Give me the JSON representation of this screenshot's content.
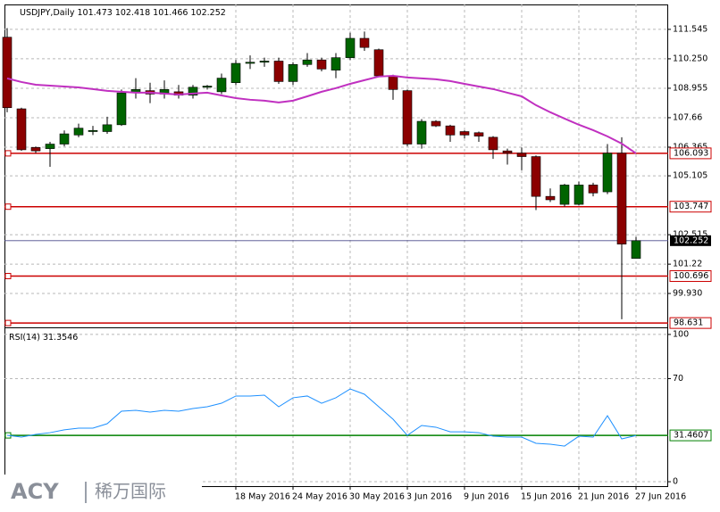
{
  "chart_data": [
    {
      "type": "candlestick",
      "title": "USDJPY,Daily",
      "categories": [
        null,
        null,
        null,
        null,
        null,
        null,
        null,
        null,
        null,
        null,
        null,
        null,
        null,
        null,
        null,
        null,
        "18 May 2016",
        null,
        null,
        null,
        "24 May 2016",
        null,
        null,
        null,
        "30 May 2016",
        null,
        null,
        null,
        "3 Jun 2016",
        null,
        null,
        null,
        "9 Jun 2016",
        null,
        null,
        null,
        "15 Jun 2016",
        null,
        null,
        null,
        "21 Jun 2016",
        null,
        null,
        null,
        "27 Jun 2016"
      ],
      "open": [
        111.2,
        108.05,
        106.35,
        106.3,
        106.5,
        106.9,
        107.05,
        107.05,
        107.35,
        108.75,
        108.85,
        108.7,
        108.8,
        108.65,
        109.0,
        108.8,
        109.2,
        110.05,
        110.1,
        110.15,
        109.25,
        110.0,
        110.2,
        109.75,
        110.3,
        111.15,
        110.65,
        109.5,
        108.85,
        106.5,
        107.5,
        107.3,
        107.05,
        107.0,
        106.8,
        106.2,
        106.1,
        105.95,
        104.2,
        103.85,
        103.85,
        104.7,
        104.4,
        106.1,
        101.473
      ],
      "high": [
        111.6,
        108.1,
        106.4,
        106.6,
        107.1,
        107.4,
        107.3,
        107.7,
        108.9,
        109.4,
        109.2,
        109.3,
        109.1,
        109.1,
        109.1,
        109.6,
        110.2,
        110.4,
        110.3,
        110.3,
        110.1,
        110.5,
        110.3,
        110.5,
        111.4,
        111.45,
        110.7,
        109.55,
        108.9,
        107.6,
        107.55,
        107.35,
        107.1,
        107.05,
        106.85,
        106.3,
        106.35,
        106.0,
        104.55,
        104.75,
        104.85,
        104.8,
        106.5,
        106.8,
        102.418
      ],
      "low": [
        107.9,
        106.2,
        106.1,
        105.5,
        106.4,
        106.8,
        106.9,
        106.95,
        107.3,
        108.5,
        108.3,
        108.5,
        108.5,
        108.5,
        108.9,
        108.7,
        109.1,
        109.8,
        109.9,
        109.15,
        109.1,
        109.9,
        109.7,
        109.4,
        110.2,
        110.6,
        109.45,
        108.45,
        106.4,
        106.3,
        107.25,
        106.6,
        106.75,
        106.6,
        105.85,
        105.6,
        105.35,
        103.6,
        103.95,
        103.75,
        103.8,
        104.2,
        104.3,
        98.8,
        101.466
      ],
      "close": [
        108.1,
        106.25,
        106.2,
        106.5,
        106.95,
        107.2,
        107.1,
        107.35,
        108.75,
        108.9,
        108.7,
        108.9,
        108.65,
        109.0,
        109.05,
        109.4,
        110.05,
        110.1,
        110.15,
        109.25,
        110.0,
        110.2,
        109.8,
        110.3,
        111.15,
        110.75,
        109.5,
        108.9,
        106.5,
        107.5,
        107.3,
        106.9,
        106.9,
        106.85,
        106.25,
        106.1,
        105.95,
        104.2,
        104.05,
        104.7,
        104.7,
        104.35,
        106.1,
        102.1,
        102.252
      ],
      "up_color": "#006400",
      "down_color": "#8b0000",
      "overlay_values": [
        109.39,
        109.23,
        109.11,
        109.07,
        109.03,
        108.99,
        108.92,
        108.84,
        108.8,
        108.76,
        108.76,
        108.72,
        108.68,
        108.72,
        108.76,
        108.64,
        108.52,
        108.45,
        108.41,
        108.33,
        108.41,
        108.6,
        108.8,
        108.96,
        109.15,
        109.31,
        109.47,
        109.5,
        109.43,
        109.39,
        109.35,
        109.27,
        109.15,
        109.03,
        108.92,
        108.76,
        108.6,
        108.21,
        107.9,
        107.62,
        107.35,
        107.11,
        106.84,
        106.52,
        106.093
      ],
      "overlay_color": "#c030c0",
      "levels": [
        106.093,
        103.747,
        100.696,
        98.631
      ],
      "level_color": "#cc0000",
      "current_color": "#4a4a8a",
      "ylim": [
        98.44,
        112.64
      ],
      "yticks": [
        111.545,
        {
          "value": 110.25,
          "label": "110.250"
        },
        108.955,
        107.66,
        106.365,
        105.105,
        102.515,
        101.22,
        {
          "value": 99.93,
          "label": "99.930"
        }
      ],
      "grid": true
    },
    {
      "type": "line",
      "title": "RSI(14)",
      "values": [
        31.5,
        30.3,
        32.1,
        33.3,
        35.2,
        36.4,
        36.4,
        39.4,
        47.9,
        48.5,
        47.3,
        48.5,
        47.9,
        49.7,
        50.9,
        53.3,
        58.2,
        58.2,
        58.8,
        50.9,
        57.0,
        58.2,
        53.3,
        57.0,
        63.0,
        59.4,
        50.9,
        42.4,
        31.5,
        38.2,
        37.0,
        33.9,
        33.9,
        33.3,
        30.9,
        30.3,
        30.3,
        26.1,
        25.5,
        24.2,
        30.9,
        30.3,
        44.8,
        29.1,
        31.3546
      ],
      "color": "#1e90ff",
      "levels": [
        31.4607
      ],
      "level_color": "#008000",
      "ylim": [
        -3,
        104.2
      ],
      "yticks": [
        0,
        70,
        100
      ],
      "grid": true
    }
  ],
  "watermark": {
    "brand": "ACY",
    "name": "稀万国际"
  }
}
